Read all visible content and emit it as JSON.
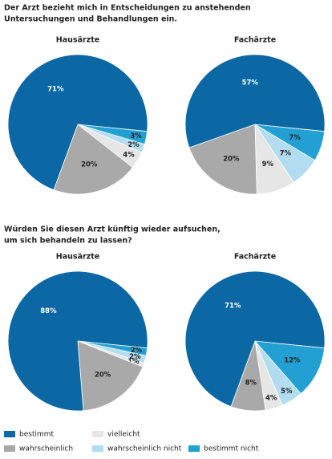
{
  "legend": {
    "categories": [
      "bestimmt",
      "wahrscheinlich",
      "vielleicht",
      "wahrscheinlich nicht",
      "bestimmt nicht"
    ],
    "colors": [
      "#0b68a4",
      "#a9a9a9",
      "#e6e6e6",
      "#b2dcef",
      "#22a0d3"
    ]
  },
  "chart_data": [
    {
      "type": "pie",
      "title": [
        "Der Arzt bezieht mich in Entscheidungen zu anstehenden",
        "Untersuchungen und Behandlungen ein."
      ],
      "subtitle": "Hausärzte",
      "values": [
        71,
        20,
        4,
        2,
        3
      ],
      "value_labels": [
        "71%",
        "20%",
        "4%",
        "2%",
        "3%"
      ]
    },
    {
      "type": "pie",
      "subtitle": "Fachärzte",
      "values": [
        57,
        20,
        9,
        7,
        7
      ],
      "value_labels": [
        "57%",
        "20%",
        "9%",
        "7%",
        "7%"
      ]
    },
    {
      "type": "pie",
      "title": [
        "Würden Sie diesen Arzt künftig wieder aufsuchen,",
        "um sich behandeln zu lassen?"
      ],
      "subtitle": "Hausärzte",
      "values": [
        88,
        20,
        1,
        2,
        2
      ],
      "value_labels": [
        "88%",
        "20%",
        "1%",
        "2%",
        "2%"
      ]
    },
    {
      "type": "pie",
      "subtitle": "Fachärzte",
      "values": [
        71,
        8,
        4,
        5,
        12
      ],
      "value_labels": [
        "71%",
        "8%",
        "4%",
        "5%",
        "12%"
      ]
    }
  ]
}
